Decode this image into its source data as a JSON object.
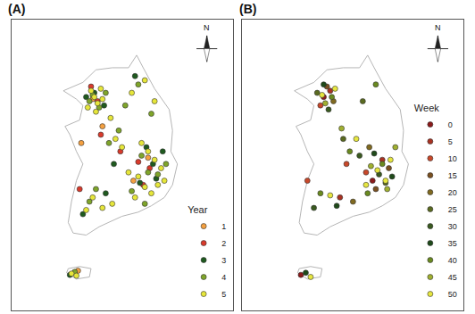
{
  "chart_data": [
    {
      "type": "scatter",
      "title": "(A)",
      "legend_title": "Year",
      "legend": "lower right",
      "marker": "circle",
      "tick_labels": false,
      "grid": false,
      "xlim": [
        124.5,
        131.3
      ],
      "ylim": [
        32.5,
        39.45
      ],
      "annotations": [
        {
          "text": "N"
        }
      ],
      "boundary": {
        "x": [
          126.1,
          126.7,
          127.1,
          127.6,
          128.1,
          128.35,
          128.55,
          128.9,
          129.35,
          129.45,
          129.4,
          129.6,
          129.45,
          129.2,
          128.8,
          128.4,
          127.9,
          127.5,
          127.2,
          126.8,
          126.4,
          126.25,
          126.35,
          126.5,
          126.7,
          126.5,
          126.3,
          126.15,
          126.6,
          126.7,
          126.5,
          126.1,
          null,
          126.2,
          126.5,
          126.9,
          126.95,
          126.6,
          126.25,
          126.2
        ],
        "y": [
          37.75,
          37.95,
          38.25,
          38.3,
          38.3,
          38.6,
          38.3,
          37.8,
          37.3,
          36.8,
          36.3,
          36.0,
          35.5,
          35.2,
          35.0,
          34.85,
          34.75,
          34.6,
          34.5,
          34.3,
          34.35,
          34.6,
          35.1,
          35.6,
          36.0,
          36.3,
          36.7,
          36.9,
          37.05,
          37.4,
          37.55,
          37.75,
          null,
          33.4,
          33.25,
          33.3,
          33.5,
          33.55,
          33.5,
          33.4
        ]
      },
      "series": [
        {
          "name": "1",
          "color": "#f4a040",
          "x": [
            127.0,
            128.7,
            128.25,
            127.3,
            126.55,
            126.65
          ],
          "y": [
            37.55,
            36.15,
            35.6,
            36.9,
            33.45,
            36.5
          ]
        },
        {
          "name": "2",
          "color": "#d93a2b",
          "x": [
            127.15,
            126.95,
            128.4,
            128.75,
            128.55,
            127.85,
            126.6,
            127.25
          ],
          "y": [
            37.5,
            37.85,
            36.05,
            35.9,
            35.5,
            36.3,
            35.4,
            36.7
          ]
        },
        {
          "name": "3",
          "color": "#1f5a1f",
          "x": [
            127.05,
            127.35,
            126.8,
            128.3,
            128.65,
            128.95,
            128.45,
            128.85,
            127.65,
            127.4,
            126.7,
            126.3,
            129.15
          ],
          "y": [
            37.7,
            37.4,
            37.6,
            38.1,
            36.4,
            35.65,
            35.55,
            36.0,
            36.0,
            35.3,
            34.8,
            33.35,
            36.3
          ]
        },
        {
          "name": "4",
          "color": "#7fa52a",
          "x": [
            127.0,
            127.2,
            126.9,
            127.4,
            128.0,
            128.4,
            128.8,
            128.5,
            128.7,
            129.0,
            129.25,
            128.2,
            127.5,
            127.8,
            126.9,
            127.1,
            128.6,
            126.45
          ],
          "y": [
            37.65,
            37.35,
            37.5,
            37.7,
            37.4,
            37.9,
            37.2,
            36.2,
            35.8,
            35.75,
            36.0,
            35.35,
            36.5,
            36.8,
            35.1,
            35.4,
            35.05,
            33.42
          ]
        },
        {
          "name": "5",
          "color": "#e6e63a",
          "x": [
            126.95,
            127.05,
            127.15,
            127.25,
            126.85,
            127.1,
            127.3,
            127.55,
            128.2,
            128.6,
            128.9,
            127.7,
            127.9,
            128.5,
            128.7,
            128.9,
            129.1,
            129.2,
            128.4,
            128.6,
            128.8,
            129.0,
            128.3,
            128.1,
            127.6,
            127.0,
            126.8,
            127.3,
            126.35,
            126.5
          ],
          "y": [
            37.75,
            37.6,
            37.45,
            37.8,
            37.35,
            37.25,
            37.55,
            37.1,
            37.7,
            38.0,
            37.5,
            36.6,
            36.4,
            36.5,
            36.3,
            36.1,
            35.9,
            35.6,
            35.7,
            35.45,
            35.3,
            35.5,
            35.2,
            35.8,
            35.05,
            35.2,
            34.9,
            34.95,
            33.38,
            33.33
          ]
        }
      ]
    },
    {
      "type": "scatter",
      "title": "(B)",
      "legend_title": "Week",
      "legend": "lower right",
      "marker": "circle",
      "tick_labels": false,
      "grid": false,
      "xlim": [
        124.5,
        131.3
      ],
      "ylim": [
        32.5,
        39.45
      ],
      "annotations": [
        {
          "text": "N"
        }
      ],
      "boundary": {
        "x": [
          126.1,
          126.7,
          127.1,
          127.6,
          128.1,
          128.35,
          128.55,
          128.9,
          129.35,
          129.45,
          129.4,
          129.6,
          129.45,
          129.2,
          128.8,
          128.4,
          127.9,
          127.5,
          127.2,
          126.8,
          126.4,
          126.25,
          126.35,
          126.5,
          126.7,
          126.5,
          126.3,
          126.15,
          126.6,
          126.7,
          126.5,
          126.1,
          null,
          126.2,
          126.5,
          126.9,
          126.95,
          126.6,
          126.25,
          126.2
        ],
        "y": [
          37.75,
          37.95,
          38.25,
          38.3,
          38.3,
          38.6,
          38.3,
          37.8,
          37.3,
          36.8,
          36.3,
          36.0,
          35.5,
          35.2,
          35.0,
          34.85,
          34.75,
          34.6,
          34.5,
          34.3,
          34.35,
          34.6,
          35.1,
          35.6,
          36.0,
          36.3,
          36.7,
          36.9,
          37.05,
          37.4,
          37.55,
          37.75,
          null,
          33.4,
          33.25,
          33.3,
          33.5,
          33.55,
          33.5,
          33.4
        ]
      },
      "series": [
        {
          "name": "0",
          "color": "#8b1a1a",
          "x": [
            127.0,
            128.5,
            126.3
          ],
          "y": [
            37.6,
            35.6,
            33.35
          ]
        },
        {
          "name": "5",
          "color": "#a83222",
          "x": [
            127.2,
            128.8,
            127.5
          ],
          "y": [
            37.75,
            36.1,
            35.2
          ]
        },
        {
          "name": "10",
          "color": "#c8482a",
          "x": [
            126.9,
            128.3,
            126.5,
            127.7
          ],
          "y": [
            37.4,
            35.8,
            35.6,
            36.0
          ]
        },
        {
          "name": "15",
          "color": "#7a5020",
          "x": [
            127.1,
            128.6,
            129.0
          ],
          "y": [
            37.85,
            35.4,
            35.9
          ]
        },
        {
          "name": "20",
          "color": "#806a20",
          "x": [
            127.3,
            128.4,
            127.9
          ],
          "y": [
            37.5,
            36.4,
            35.1
          ]
        },
        {
          "name": "25",
          "color": "#5a6a20",
          "x": [
            126.8,
            128.9,
            127.6,
            128.2
          ],
          "y": [
            37.7,
            35.55,
            36.6,
            37.5
          ]
        },
        {
          "name": "30",
          "color": "#3a5a20",
          "x": [
            127.15,
            128.7,
            126.7,
            128.1
          ],
          "y": [
            37.3,
            35.75,
            34.95,
            36.2
          ]
        },
        {
          "name": "35",
          "color": "#1f4a1a",
          "x": [
            127.0,
            128.55,
            129.1,
            126.45,
            127.4
          ],
          "y": [
            37.9,
            36.25,
            35.7,
            33.4,
            35.0
          ]
        },
        {
          "name": "40",
          "color": "#6a8a20",
          "x": [
            127.25,
            128.35,
            128.8,
            127.8,
            126.9,
            128.6
          ],
          "y": [
            37.6,
            35.3,
            36.0,
            36.3,
            35.3,
            37.9
          ]
        },
        {
          "name": "45",
          "color": "#a0b030",
          "x": [
            127.05,
            128.45,
            129.2,
            127.55,
            128.95
          ],
          "y": [
            37.45,
            35.95,
            36.4,
            36.85,
            35.4
          ]
        },
        {
          "name": "50",
          "color": "#e6e640",
          "x": [
            126.95,
            127.35,
            128.65,
            128.9,
            128.3,
            129.05,
            127.2,
            126.6,
            128.0
          ],
          "y": [
            37.65,
            37.8,
            35.85,
            35.6,
            35.5,
            36.1,
            35.25,
            33.3,
            36.6
          ]
        }
      ]
    }
  ]
}
